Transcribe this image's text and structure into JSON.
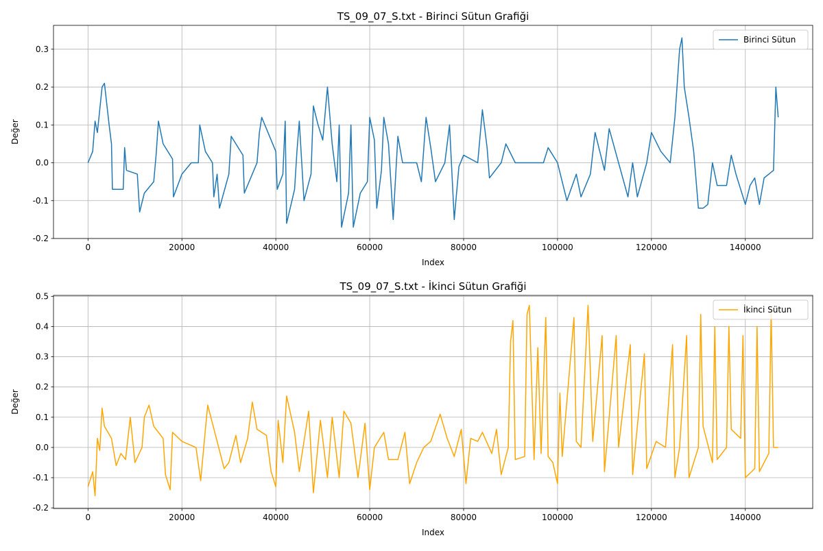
{
  "chart_data": [
    {
      "type": "line",
      "title": "TS_09_07_S.txt - Birinci Sütun Grafiği",
      "xlabel": "Index",
      "ylabel": "Değer",
      "x": [
        0,
        1000,
        1500,
        2000,
        3000,
        3500,
        4500,
        5000,
        5200,
        7500,
        7800,
        8200,
        10500,
        11000,
        12000,
        14000,
        14500,
        15000,
        16000,
        18000,
        18200,
        20000,
        22000,
        23500,
        23800,
        25000,
        26500,
        26800,
        27500,
        28000,
        30000,
        30500,
        33000,
        33300,
        36000,
        36500,
        37000,
        40000,
        40300,
        41500,
        42000,
        42300,
        44000,
        44500,
        45000,
        46000,
        47500,
        48000,
        49000,
        50000,
        51000,
        52000,
        53000,
        53500,
        54000,
        55500,
        56000,
        56500,
        58000,
        59500,
        60000,
        61000,
        61500,
        62500,
        63000,
        64000,
        65000,
        66000,
        67000,
        70000,
        71000,
        72000,
        73000,
        74000,
        76000,
        77000,
        78000,
        79000,
        80000,
        83000,
        84000,
        85000,
        85500,
        88000,
        89000,
        91000,
        93000,
        97000,
        98000,
        100000,
        102000,
        104000,
        105000,
        107000,
        108000,
        109000,
        110000,
        111000,
        113000,
        115000,
        116000,
        117000,
        119000,
        120000,
        122000,
        124000,
        125000,
        126000,
        126500,
        127000,
        128000,
        129000,
        130000,
        131000,
        132000,
        133000,
        134000,
        136000,
        137000,
        138000,
        140000,
        141000,
        142000,
        143000,
        144000,
        146000,
        146500,
        147000
      ],
      "series": [
        {
          "name": "Birinci Sütun",
          "color": "#1f77b4",
          "values": [
            0.0,
            0.03,
            0.11,
            0.08,
            0.2,
            0.21,
            0.1,
            0.05,
            -0.07,
            -0.07,
            0.04,
            -0.02,
            -0.03,
            -0.13,
            -0.08,
            -0.05,
            0.02,
            0.11,
            0.05,
            0.01,
            -0.09,
            -0.03,
            0.0,
            0.0,
            0.1,
            0.03,
            0.0,
            -0.09,
            -0.03,
            -0.12,
            -0.03,
            0.07,
            0.02,
            -0.08,
            0.0,
            0.08,
            0.12,
            0.03,
            -0.07,
            -0.03,
            0.11,
            -0.16,
            -0.07,
            0.03,
            0.11,
            -0.1,
            -0.03,
            0.15,
            0.1,
            0.06,
            0.2,
            0.05,
            -0.05,
            0.1,
            -0.17,
            -0.08,
            0.1,
            -0.17,
            -0.08,
            -0.05,
            0.12,
            0.06,
            -0.12,
            -0.02,
            0.12,
            0.05,
            -0.15,
            0.07,
            0.0,
            0.0,
            -0.05,
            0.12,
            0.04,
            -0.05,
            0.0,
            0.1,
            -0.15,
            -0.01,
            0.02,
            0.0,
            0.14,
            0.04,
            -0.04,
            0.0,
            0.05,
            0.0,
            0.0,
            0.0,
            0.04,
            0.0,
            -0.1,
            -0.03,
            -0.09,
            -0.03,
            0.08,
            0.03,
            -0.02,
            0.09,
            0.0,
            -0.09,
            0.0,
            -0.09,
            0.0,
            0.08,
            0.03,
            0.0,
            0.12,
            0.3,
            0.33,
            0.2,
            0.12,
            0.03,
            -0.12,
            -0.12,
            -0.11,
            0.0,
            -0.06,
            -0.06,
            0.02,
            -0.03,
            -0.11,
            -0.06,
            -0.04,
            -0.11,
            -0.04,
            -0.02,
            0.2,
            0.12
          ]
        }
      ],
      "xlim": [
        -7350,
        154350
      ],
      "ylim": [
        -0.2,
        0.363
      ],
      "xticks": [
        0,
        20000,
        40000,
        60000,
        80000,
        100000,
        120000,
        140000
      ],
      "yticks": [
        -0.2,
        -0.1,
        {
          "value": 0,
          "label": "0.0"
        },
        0.1,
        0.2,
        0.3
      ],
      "grid": true,
      "legend": "upper-right"
    },
    {
      "type": "line",
      "title": "TS_09_07_S.txt - İkinci Sütun Grafiği",
      "xlabel": "Index",
      "ylabel": "Değer",
      "x": [
        0,
        1000,
        1500,
        2000,
        2500,
        3000,
        3500,
        5000,
        6000,
        7000,
        8000,
        9000,
        10000,
        11500,
        12000,
        13000,
        14000,
        16000,
        16500,
        17500,
        18000,
        20000,
        23000,
        24000,
        25000,
        25500,
        27000,
        29000,
        30000,
        31500,
        32500,
        34000,
        35000,
        36000,
        38000,
        39000,
        40000,
        40500,
        41500,
        42300,
        44000,
        45000,
        47000,
        48000,
        49500,
        51000,
        52000,
        53500,
        54500,
        56000,
        57500,
        59000,
        60000,
        61000,
        63000,
        64000,
        66000,
        67500,
        68500,
        70000,
        71500,
        73000,
        75000,
        76500,
        78000,
        79500,
        80500,
        81500,
        83000,
        84000,
        86000,
        87000,
        88000,
        89500,
        90000,
        90500,
        91000,
        93000,
        93500,
        94000,
        95000,
        95800,
        96500,
        97500,
        98000,
        99000,
        100000,
        100500,
        101000,
        103500,
        104000,
        105000,
        106500,
        107500,
        109500,
        110000,
        112500,
        113000,
        115500,
        116000,
        118500,
        119000,
        121000,
        123000,
        124500,
        125000,
        126000,
        127500,
        128000,
        130000,
        130500,
        131000,
        133000,
        133500,
        134000,
        136000,
        136500,
        137000,
        139000,
        139500,
        140000,
        142000,
        142500,
        143000,
        145000,
        145500,
        146000,
        147000
      ],
      "series": [
        {
          "name": "İkinci Sütun",
          "color": "#ffa500",
          "values": [
            -0.13,
            -0.08,
            -0.16,
            0.03,
            -0.01,
            0.13,
            0.07,
            0.03,
            -0.06,
            -0.02,
            -0.04,
            0.1,
            -0.05,
            0.0,
            0.1,
            0.14,
            0.07,
            0.03,
            -0.09,
            -0.14,
            0.05,
            0.02,
            0.0,
            -0.11,
            0.06,
            0.14,
            0.05,
            -0.07,
            -0.05,
            0.04,
            -0.05,
            0.03,
            0.15,
            0.06,
            0.04,
            -0.08,
            -0.13,
            0.09,
            -0.05,
            0.17,
            0.05,
            -0.08,
            0.12,
            -0.15,
            0.09,
            -0.1,
            0.1,
            -0.1,
            0.12,
            0.08,
            -0.1,
            0.08,
            -0.14,
            0.0,
            0.05,
            -0.04,
            -0.04,
            0.05,
            -0.12,
            -0.05,
            0.0,
            0.02,
            0.11,
            0.03,
            -0.03,
            0.06,
            -0.12,
            0.03,
            0.02,
            0.05,
            -0.02,
            0.06,
            -0.09,
            0.0,
            0.35,
            0.42,
            -0.04,
            -0.03,
            0.44,
            0.47,
            -0.04,
            0.33,
            -0.02,
            0.43,
            -0.03,
            -0.05,
            -0.12,
            0.18,
            -0.03,
            0.43,
            0.02,
            0.0,
            0.47,
            0.02,
            0.37,
            -0.08,
            0.37,
            0.0,
            0.34,
            -0.09,
            0.31,
            -0.07,
            0.02,
            0.0,
            0.34,
            -0.1,
            0.0,
            0.37,
            -0.1,
            0.0,
            0.44,
            0.07,
            -0.05,
            0.4,
            -0.04,
            0.0,
            0.4,
            0.06,
            0.03,
            0.37,
            -0.1,
            -0.07,
            0.4,
            -0.08,
            -0.02,
            0.45,
            0.0,
            0.0
          ]
        }
      ],
      "xlim": [
        -7350,
        154350
      ],
      "ylim": [
        -0.202,
        0.503
      ],
      "xticks": [
        0,
        20000,
        40000,
        60000,
        80000,
        100000,
        120000,
        140000
      ],
      "yticks": [
        -0.2,
        -0.1,
        {
          "value": 0,
          "label": "0.0"
        },
        0.1,
        0.2,
        0.3,
        0.4,
        0.5
      ],
      "grid": true,
      "legend": "upper-right"
    }
  ]
}
